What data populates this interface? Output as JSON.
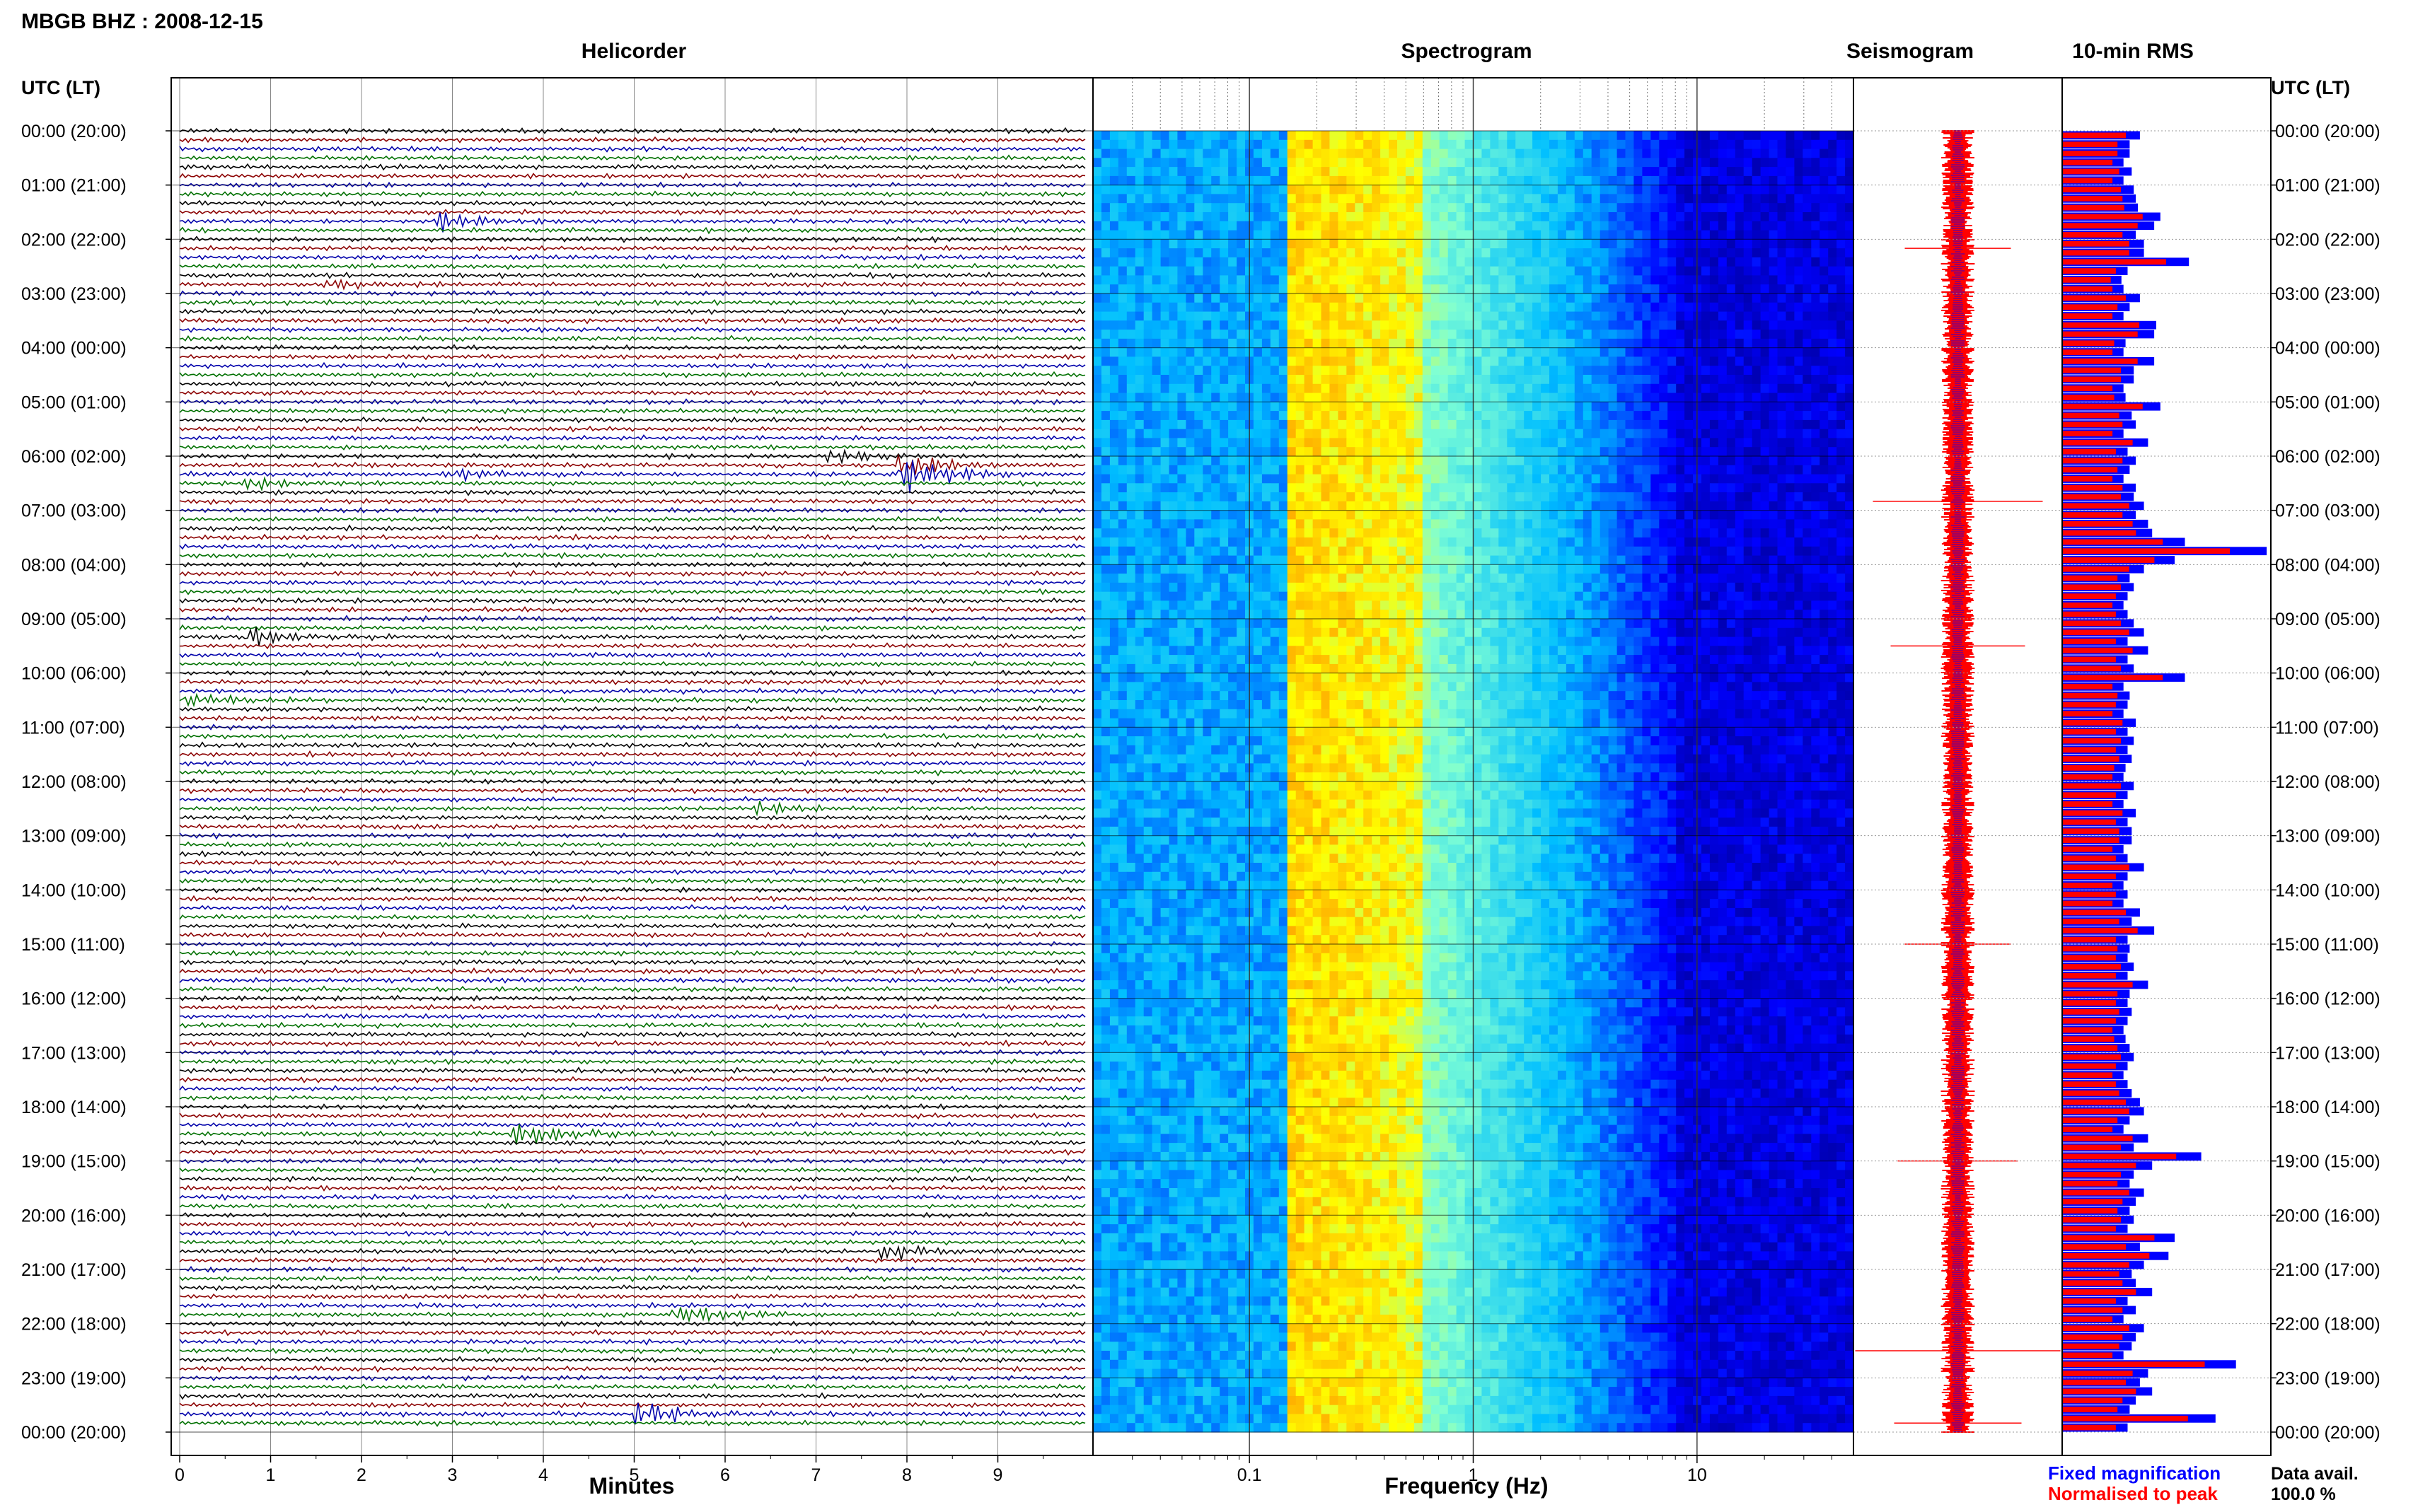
{
  "header": {
    "station_title": "MBGB BHZ : 2008-12-15"
  },
  "panels": {
    "helicorder": "Helicorder",
    "spectrogram": "Spectrogram",
    "seismogram": "Seismogram",
    "rms": "10-min RMS"
  },
  "axes": {
    "left_time_header": "UTC (LT)",
    "right_time_header": "UTC (LT)",
    "helicorder_xlabel": "Minutes",
    "spectrogram_xlabel": "Frequency (Hz)",
    "time_labels": [
      "00:00 (20:00)",
      "01:00 (21:00)",
      "02:00 (22:00)",
      "03:00 (23:00)",
      "04:00 (00:00)",
      "05:00 (01:00)",
      "06:00 (02:00)",
      "07:00 (03:00)",
      "08:00 (04:00)",
      "09:00 (05:00)",
      "10:00 (06:00)",
      "11:00 (07:00)",
      "12:00 (08:00)",
      "13:00 (09:00)",
      "14:00 (10:00)",
      "15:00 (11:00)",
      "16:00 (12:00)",
      "17:00 (13:00)",
      "18:00 (14:00)",
      "19:00 (15:00)",
      "20:00 (16:00)",
      "21:00 (17:00)",
      "22:00 (18:00)",
      "23:00 (19:00)",
      "00:00 (20:00)"
    ],
    "minute_ticks": [
      "0",
      "1",
      "2",
      "3",
      "4",
      "5",
      "6",
      "7",
      "8",
      "9"
    ],
    "frequency_ticks": [
      "0.1",
      "1",
      "10"
    ]
  },
  "legend": {
    "fixed_label": "Fixed magnification",
    "normalised_label": "Normalised to peak",
    "fixed_color": "#0000ff",
    "normalised_color": "#ff0000"
  },
  "availability": {
    "label": "Data avail.",
    "value": "100.0 %"
  },
  "chart_data": [
    {
      "type": "line",
      "panel": "Helicorder",
      "x_unit": "minutes",
      "xlim": [
        0,
        10
      ],
      "rows_per_hour": 6,
      "trace_colors": [
        "#000000",
        "#8b0000",
        "#0000aa",
        "#007000"
      ],
      "events": [
        {
          "utc": "01:40",
          "minute": 2.9,
          "amp": 0.8
        },
        {
          "utc": "02:50",
          "minute": 1.7,
          "amp": 0.4
        },
        {
          "utc": "06:00",
          "minute": 7.2,
          "amp": 0.6
        },
        {
          "utc": "06:10",
          "minute": 8.0,
          "amp": 1.0
        },
        {
          "utc": "06:20",
          "minute": 8.0,
          "amp": 1.6
        },
        {
          "utc": "06:30",
          "minute": 0.8,
          "amp": 0.5
        },
        {
          "utc": "06:20",
          "minute": 3.0,
          "amp": 0.5
        },
        {
          "utc": "09:20",
          "minute": 0.8,
          "amp": 0.8
        },
        {
          "utc": "10:30",
          "minute": 0.1,
          "amp": 0.6
        },
        {
          "utc": "12:30",
          "minute": 6.4,
          "amp": 0.4
        },
        {
          "utc": "18:30",
          "minute": 3.7,
          "amp": 1.2
        },
        {
          "utc": "21:50",
          "minute": 5.5,
          "amp": 1.0
        },
        {
          "utc": "23:40",
          "minute": 5.1,
          "amp": 1.1
        },
        {
          "utc": "20:40",
          "minute": 7.8,
          "amp": 0.7
        }
      ]
    },
    {
      "type": "heatmap",
      "panel": "Spectrogram",
      "x_scale": "log",
      "xlim": [
        0.02,
        50
      ],
      "xlabel": "Frequency (Hz)",
      "colormap": [
        "#000080",
        "#0000ff",
        "#00bfff",
        "#7fffd4",
        "#ffff00",
        "#ffa500"
      ],
      "features": {
        "peak_band_hz": [
          0.15,
          0.5
        ],
        "roll_off_above_hz": 5
      }
    },
    {
      "type": "line",
      "panel": "Seismogram",
      "note_spikes_utc": [
        "02:10",
        "06:50",
        "09:30",
        "15:00",
        "19:00",
        "22:30",
        "23:50"
      ]
    },
    {
      "type": "bar",
      "panel": "10-min RMS",
      "orientation": "horizontal",
      "series": [
        {
          "name": "Fixed magnification",
          "color": "#0000ff"
        },
        {
          "name": "Normalised to peak",
          "color": "#ff0000"
        }
      ],
      "values_relative": [
        0.38,
        0.33,
        0.33,
        0.3,
        0.34,
        0.3,
        0.35,
        0.36,
        0.37,
        0.48,
        0.45,
        0.36,
        0.4,
        0.4,
        0.62,
        0.32,
        0.29,
        0.3,
        0.38,
        0.33,
        0.3,
        0.46,
        0.45,
        0.31,
        0.3,
        0.45,
        0.35,
        0.35,
        0.3,
        0.31,
        0.48,
        0.34,
        0.36,
        0.3,
        0.42,
        0.32,
        0.36,
        0.33,
        0.3,
        0.36,
        0.35,
        0.4,
        0.36,
        0.42,
        0.44,
        0.6,
        1.0,
        0.55,
        0.4,
        0.33,
        0.35,
        0.32,
        0.3,
        0.32,
        0.35,
        0.4,
        0.32,
        0.42,
        0.32,
        0.35,
        0.6,
        0.3,
        0.33,
        0.32,
        0.3,
        0.36,
        0.32,
        0.35,
        0.32,
        0.34,
        0.31,
        0.3,
        0.35,
        0.32,
        0.3,
        0.36,
        0.32,
        0.34,
        0.34,
        0.3,
        0.32,
        0.4,
        0.32,
        0.3,
        0.32,
        0.3,
        0.38,
        0.34,
        0.45,
        0.32,
        0.33,
        0.32,
        0.35,
        0.32,
        0.42,
        0.33,
        0.32,
        0.34,
        0.32,
        0.3,
        0.31,
        0.33,
        0.35,
        0.32,
        0.3,
        0.32,
        0.34,
        0.38,
        0.4,
        0.33,
        0.3,
        0.42,
        0.35,
        0.68,
        0.44,
        0.35,
        0.33,
        0.4,
        0.36,
        0.33,
        0.35,
        0.32,
        0.55,
        0.38,
        0.52,
        0.4,
        0.34,
        0.36,
        0.44,
        0.32,
        0.36,
        0.3,
        0.4,
        0.36,
        0.34,
        0.3,
        0.85,
        0.42,
        0.38,
        0.44,
        0.36,
        0.33,
        0.75,
        0.32
      ]
    }
  ]
}
